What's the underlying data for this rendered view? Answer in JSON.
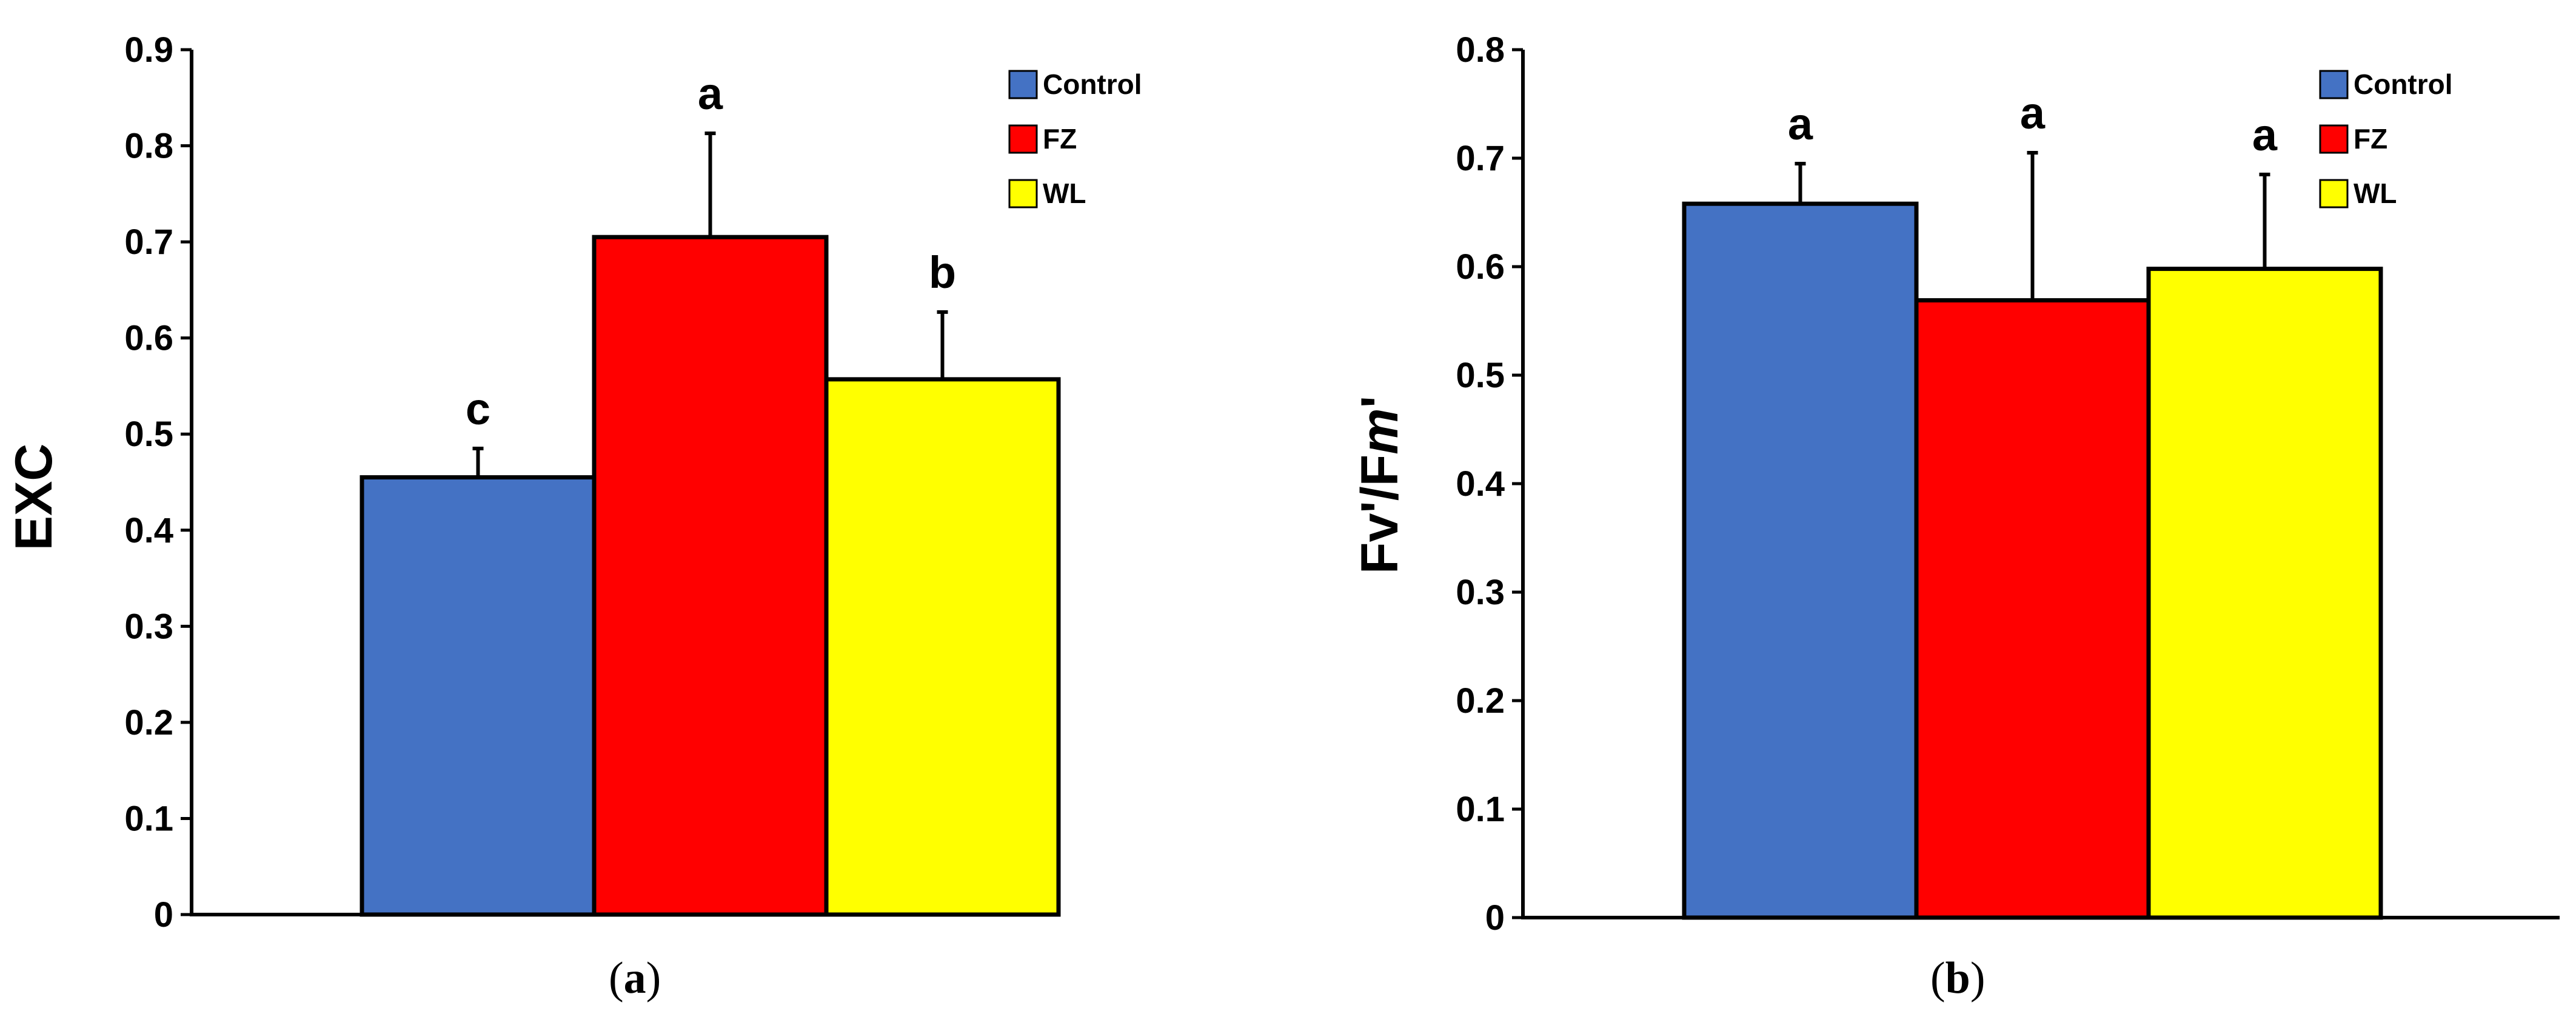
{
  "chart_data": [
    {
      "type": "bar",
      "panel_label": "a",
      "ylabel": "EXC",
      "ylim": [
        0,
        0.9
      ],
      "yticks": [
        "0",
        "0.1",
        "0.2",
        "0.3",
        "0.4",
        "0.5",
        "0.6",
        "0.7",
        "0.8",
        "0.9"
      ],
      "legend": {
        "position": "top-right",
        "entries": [
          "Control",
          "FZ",
          "WL"
        ]
      },
      "series": [
        {
          "name": "Control",
          "value": 0.455,
          "error": 0.03,
          "significance": "c",
          "color": "#4472C4"
        },
        {
          "name": "FZ",
          "value": 0.705,
          "error": 0.108,
          "significance": "a",
          "color": "#FF0000"
        },
        {
          "name": "WL",
          "value": 0.557,
          "error": 0.07,
          "significance": "b",
          "color": "#FFFF00"
        }
      ]
    },
    {
      "type": "bar",
      "panel_label": "b",
      "ylabel_parts": [
        {
          "text": "Fv",
          "italic": false
        },
        {
          "text": "'/F",
          "italic": false
        },
        {
          "text": "m",
          "italic": true
        },
        {
          "text": "'",
          "italic": false
        }
      ],
      "ylim": [
        0,
        0.8
      ],
      "yticks": [
        "0",
        "0.1",
        "0.2",
        "0.3",
        "0.4",
        "0.5",
        "0.6",
        "0.7",
        "0.8"
      ],
      "legend": {
        "position": "top-right",
        "entries": [
          "Control",
          "FZ",
          "WL"
        ]
      },
      "series": [
        {
          "name": "Control",
          "value": 0.658,
          "error": 0.037,
          "significance": "a",
          "color": "#4472C4"
        },
        {
          "name": "FZ",
          "value": 0.569,
          "error": 0.136,
          "significance": "a",
          "color": "#FF0000"
        },
        {
          "name": "WL",
          "value": 0.598,
          "error": 0.087,
          "significance": "a",
          "color": "#FFFF00"
        }
      ]
    }
  ]
}
